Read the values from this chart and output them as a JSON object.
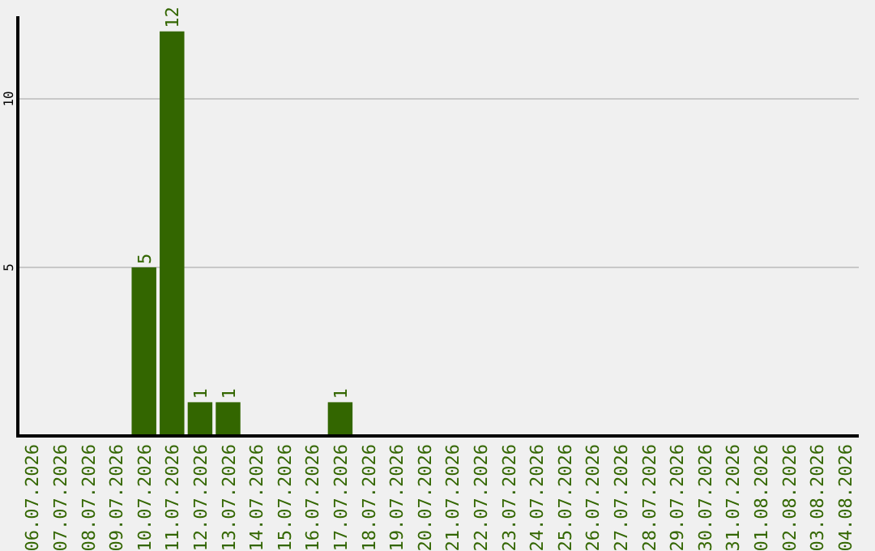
{
  "chart_data": {
    "type": "bar",
    "categories": [
      "06.07.2026",
      "07.07.2026",
      "08.07.2026",
      "09.07.2026",
      "10.07.2026",
      "11.07.2026",
      "12.07.2026",
      "13.07.2026",
      "14.07.2026",
      "15.07.2026",
      "16.07.2026",
      "17.07.2026",
      "18.07.2026",
      "19.07.2026",
      "20.07.2026",
      "21.07.2026",
      "22.07.2026",
      "23.07.2026",
      "24.07.2026",
      "25.07.2026",
      "26.07.2026",
      "27.07.2026",
      "28.07.2026",
      "29.07.2026",
      "30.07.2026",
      "31.07.2026",
      "01.08.2026",
      "02.08.2026",
      "03.08.2026",
      "04.08.2026"
    ],
    "values": [
      0,
      0,
      0,
      0,
      5,
      12,
      1,
      1,
      0,
      0,
      0,
      1,
      0,
      0,
      0,
      0,
      0,
      0,
      0,
      0,
      0,
      0,
      0,
      0,
      0,
      0,
      0,
      0,
      0,
      0
    ],
    "value_labels": [
      null,
      null,
      null,
      null,
      "5",
      "12",
      "1",
      "1",
      null,
      null,
      null,
      "1",
      null,
      null,
      null,
      null,
      null,
      null,
      null,
      null,
      null,
      null,
      null,
      null,
      null,
      null,
      null,
      null,
      null,
      null
    ],
    "color": "#336600",
    "ylim": [
      0,
      12.45
    ],
    "yticks": [
      5,
      10
    ],
    "grid": "y"
  }
}
